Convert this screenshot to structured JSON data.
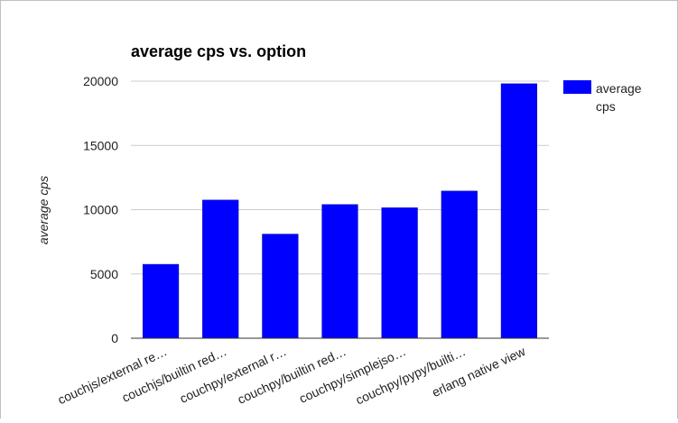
{
  "chart_data": {
    "type": "bar",
    "title": "average cps vs. option",
    "xlabel": "",
    "ylabel": "average cps",
    "categories": [
      "couchjs/external re…",
      "couchjs/builtin red…",
      "couchpy/external r…",
      "couchpy/builtin red…",
      "couchpy/simplejso…",
      "couchpy/pypy/builti…",
      "erlang native view"
    ],
    "series": [
      {
        "name": "average cps",
        "color": "#0000ff",
        "values": [
          5750,
          10750,
          8100,
          10400,
          10150,
          11450,
          19800
        ]
      }
    ],
    "ylim": [
      0,
      20000
    ],
    "yticks": [
      0,
      5000,
      10000,
      15000,
      20000
    ],
    "grid": true,
    "legend": "right",
    "legend_lines": [
      "average",
      "cps"
    ]
  }
}
